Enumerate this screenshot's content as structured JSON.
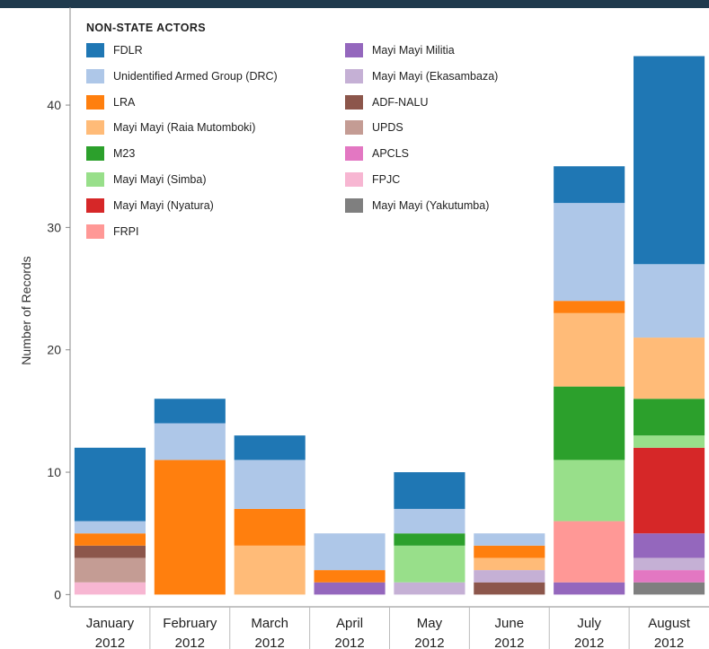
{
  "chart_data": {
    "type": "bar",
    "stacked": true,
    "ylabel": "Number of Records",
    "ylim": [
      -1,
      48
    ],
    "yticks": [
      0,
      10,
      20,
      30,
      40
    ],
    "categories": [
      [
        "January",
        "2012"
      ],
      [
        "February",
        "2012"
      ],
      [
        "March",
        "2012"
      ],
      [
        "April",
        "2012"
      ],
      [
        "May",
        "2012"
      ],
      [
        "June",
        "2012"
      ],
      [
        "July",
        "2012"
      ],
      [
        "August",
        "2012"
      ]
    ],
    "legend": {
      "title": "NON-STATE ACTORS",
      "placement": "top-left"
    },
    "series": [
      {
        "name": "Mayi Mayi (Yakutumba)",
        "color": "#7f7f7f",
        "values": [
          0,
          0,
          0,
          0,
          0,
          0,
          0,
          1
        ]
      },
      {
        "name": "FPJC",
        "color": "#f7b6d2",
        "values": [
          1,
          0,
          0,
          0,
          0,
          0,
          0,
          0
        ]
      },
      {
        "name": "APCLS",
        "color": "#e377c2",
        "values": [
          0,
          0,
          0,
          0,
          0,
          0,
          0,
          1
        ]
      },
      {
        "name": "UPDS",
        "color": "#c49c94",
        "values": [
          2,
          0,
          0,
          0,
          0,
          0,
          0,
          0
        ]
      },
      {
        "name": "ADF-NALU",
        "color": "#8c564b",
        "values": [
          1,
          0,
          0,
          0,
          0,
          1,
          0,
          0
        ]
      },
      {
        "name": "Mayi Mayi (Ekasambaza)",
        "color": "#c5b0d5",
        "values": [
          0,
          0,
          0,
          0,
          1,
          1,
          0,
          1
        ]
      },
      {
        "name": "Mayi Mayi Militia",
        "color": "#9467bd",
        "values": [
          0,
          0,
          0,
          1,
          0,
          0,
          1,
          2
        ]
      },
      {
        "name": "FRPI",
        "color": "#ff9896",
        "values": [
          0,
          0,
          0,
          0,
          0,
          0,
          5,
          0
        ]
      },
      {
        "name": "Mayi Mayi (Nyatura)",
        "color": "#d62728",
        "values": [
          0,
          0,
          0,
          0,
          0,
          0,
          0,
          7
        ]
      },
      {
        "name": "Mayi Mayi (Simba)",
        "color": "#98df8a",
        "values": [
          0,
          0,
          0,
          0,
          3,
          0,
          5,
          1
        ]
      },
      {
        "name": "M23",
        "color": "#2ca02c",
        "values": [
          0,
          0,
          0,
          0,
          1,
          0,
          6,
          3
        ]
      },
      {
        "name": "Mayi Mayi (Raia Mutomboki)",
        "color": "#ffbb78",
        "values": [
          0,
          0,
          4,
          0,
          0,
          1,
          6,
          5
        ]
      },
      {
        "name": "LRA",
        "color": "#ff7f0e",
        "values": [
          1,
          11,
          3,
          1,
          0,
          1,
          1,
          0
        ]
      },
      {
        "name": "Unidentified Armed Group (DRC)",
        "color": "#aec7e8",
        "values": [
          1,
          3,
          4,
          3,
          2,
          1,
          8,
          6
        ]
      },
      {
        "name": "FDLR",
        "color": "#1f77b4",
        "values": [
          6,
          2,
          2,
          0,
          3,
          0,
          3,
          17
        ]
      }
    ],
    "legend_order": [
      "FDLR",
      "Unidentified Armed Group (DRC)",
      "LRA",
      "Mayi Mayi (Raia Mutomboki)",
      "M23",
      "Mayi Mayi (Simba)",
      "Mayi Mayi (Nyatura)",
      "FRPI",
      "Mayi Mayi Militia",
      "Mayi Mayi (Ekasambaza)",
      "ADF-NALU",
      "UPDS",
      "APCLS",
      "FPJC",
      "Mayi Mayi (Yakutumba)"
    ],
    "grid": false
  }
}
